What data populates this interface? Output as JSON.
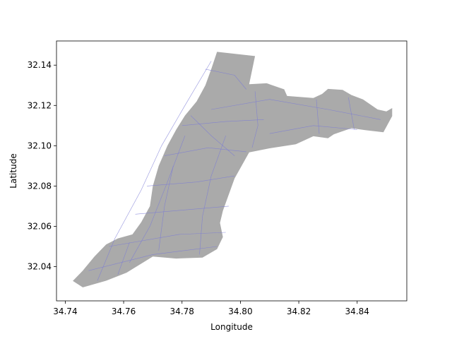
{
  "chart_data": {
    "type": "map",
    "xlabel": "Longitude",
    "ylabel": "Latitude",
    "xlim": [
      34.737,
      34.857
    ],
    "ylim": [
      32.023,
      32.152
    ],
    "x_ticks": [
      "34.74",
      "34.76",
      "34.78",
      "34.80",
      "34.82",
      "34.84"
    ],
    "y_ticks": [
      "32.04",
      "32.06",
      "32.08",
      "32.10",
      "32.12",
      "32.14"
    ],
    "x_tick_values": [
      34.74,
      34.76,
      34.78,
      34.8,
      34.82,
      34.84
    ],
    "y_tick_values": [
      32.04,
      32.06,
      32.08,
      32.1,
      32.12,
      32.14
    ],
    "region_fill": "#aaaaaa",
    "road_color": "#7a7ad6",
    "grid": false,
    "outline": [
      [
        34.7426,
        32.0329
      ],
      [
        34.746,
        32.038
      ],
      [
        34.75,
        32.045
      ],
      [
        34.754,
        32.051
      ],
      [
        34.758,
        32.054
      ],
      [
        34.763,
        32.056
      ],
      [
        34.766,
        32.062
      ],
      [
        34.769,
        32.07
      ],
      [
        34.77,
        32.08
      ],
      [
        34.772,
        32.09
      ],
      [
        34.775,
        32.1
      ],
      [
        34.778,
        32.108
      ],
      [
        34.781,
        32.115
      ],
      [
        34.785,
        32.122
      ],
      [
        34.788,
        32.13
      ],
      [
        34.79,
        32.138
      ],
      [
        34.792,
        32.1466
      ],
      [
        34.805,
        32.1445
      ],
      [
        34.803,
        32.1305
      ],
      [
        34.809,
        32.131
      ],
      [
        34.815,
        32.128
      ],
      [
        34.816,
        32.1247
      ],
      [
        34.825,
        32.1237
      ],
      [
        34.828,
        32.1257
      ],
      [
        34.83,
        32.1282
      ],
      [
        34.835,
        32.1277
      ],
      [
        34.838,
        32.1252
      ],
      [
        34.842,
        32.123
      ],
      [
        34.847,
        32.118
      ],
      [
        34.85,
        32.117
      ],
      [
        34.852,
        32.1187
      ],
      [
        34.852,
        32.1147
      ],
      [
        34.849,
        32.1067
      ],
      [
        34.843,
        32.1077
      ],
      [
        34.838,
        32.1087
      ],
      [
        34.832,
        32.1057
      ],
      [
        34.83,
        32.1037
      ],
      [
        34.825,
        32.1047
      ],
      [
        34.819,
        32.1007
      ],
      [
        34.81,
        32.0987
      ],
      [
        34.803,
        32.0967
      ],
      [
        34.798,
        32.0837
      ],
      [
        34.794,
        32.0677
      ],
      [
        34.793,
        32.0617
      ],
      [
        34.794,
        32.0547
      ],
      [
        34.792,
        32.0487
      ],
      [
        34.787,
        32.0445
      ],
      [
        34.778,
        32.044
      ],
      [
        34.77,
        32.045
      ],
      [
        34.761,
        32.037
      ],
      [
        34.754,
        32.033
      ],
      [
        34.746,
        32.0297
      ]
    ],
    "roads": [
      [
        [
          34.751,
          32.033
        ],
        [
          34.757,
          32.054
        ],
        [
          34.766,
          32.078
        ],
        [
          34.773,
          32.1
        ],
        [
          34.781,
          32.12
        ],
        [
          34.79,
          32.142
        ]
      ],
      [
        [
          34.762,
          32.042
        ],
        [
          34.769,
          32.06
        ],
        [
          34.775,
          32.082
        ],
        [
          34.781,
          32.105
        ]
      ],
      [
        [
          34.748,
          32.038
        ],
        [
          34.77,
          32.046
        ],
        [
          34.792,
          32.05
        ]
      ],
      [
        [
          34.755,
          32.05
        ],
        [
          34.779,
          32.056
        ],
        [
          34.795,
          32.057
        ]
      ],
      [
        [
          34.764,
          32.066
        ],
        [
          34.78,
          32.068
        ],
        [
          34.796,
          32.07
        ]
      ],
      [
        [
          34.768,
          32.08
        ],
        [
          34.785,
          32.082
        ],
        [
          34.798,
          32.085
        ]
      ],
      [
        [
          34.774,
          32.095
        ],
        [
          34.789,
          32.099
        ],
        [
          34.802,
          32.097
        ]
      ],
      [
        [
          34.78,
          32.11
        ],
        [
          34.795,
          32.112
        ],
        [
          34.808,
          32.113
        ]
      ],
      [
        [
          34.79,
          32.118
        ],
        [
          34.81,
          32.123
        ],
        [
          34.83,
          32.118
        ],
        [
          34.848,
          32.113
        ]
      ],
      [
        [
          34.81,
          32.106
        ],
        [
          34.825,
          32.11
        ],
        [
          34.84,
          32.108
        ]
      ],
      [
        [
          34.805,
          32.127
        ],
        [
          34.806,
          32.11
        ],
        [
          34.804,
          32.099
        ]
      ],
      [
        [
          34.826,
          32.123
        ],
        [
          34.827,
          32.106
        ]
      ],
      [
        [
          34.837,
          32.124
        ],
        [
          34.839,
          32.108
        ]
      ],
      [
        [
          34.786,
          32.046
        ],
        [
          34.787,
          32.065
        ],
        [
          34.79,
          32.085
        ],
        [
          34.795,
          32.105
        ]
      ],
      [
        [
          34.772,
          32.048
        ],
        [
          34.774,
          32.07
        ],
        [
          34.777,
          32.09
        ]
      ],
      [
        [
          34.758,
          32.036
        ],
        [
          34.762,
          32.052
        ]
      ],
      [
        [
          34.788,
          32.138
        ],
        [
          34.798,
          32.135
        ],
        [
          34.802,
          32.128
        ]
      ],
      [
        [
          34.783,
          32.115
        ],
        [
          34.79,
          32.105
        ],
        [
          34.798,
          32.095
        ]
      ]
    ]
  }
}
